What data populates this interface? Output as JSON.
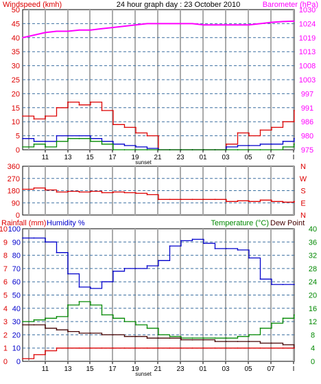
{
  "chart_data": [
    {
      "panel": "wind",
      "type": "line",
      "title": "24 hour graph day : 23 October 2010",
      "left_axis_label": "Windspeed (kmh)",
      "right_axis_label": "Barometer (hPa)",
      "left_ticks": [
        "0",
        "5",
        "10",
        "15",
        "20",
        "25",
        "30",
        "35",
        "40",
        "45",
        "50"
      ],
      "right_ticks": [
        "975",
        "980",
        "986",
        "991",
        "997",
        "1003",
        "1008",
        "1013",
        "1019",
        "1024",
        "1030"
      ],
      "ylim_left": [
        0,
        50
      ],
      "ylim_right": [
        975,
        1030
      ],
      "x_ticks": [
        "11",
        "13",
        "15",
        "17",
        "19",
        "21",
        "23",
        "01",
        "03",
        "05",
        "07",
        "I"
      ],
      "sunset_label": "sunset",
      "grid": true,
      "series": [
        {
          "name": "Barometer (hPa)",
          "color": "#ff00ff",
          "axis": "right",
          "x": [
            0,
            1,
            2,
            3,
            4,
            5,
            6,
            7,
            8,
            9,
            10,
            11,
            12,
            13,
            14,
            15,
            16,
            17,
            18,
            19,
            20,
            21,
            22,
            23,
            24
          ],
          "values": [
            1019,
            1020,
            1021,
            1021.5,
            1021.5,
            1022,
            1022,
            1022.5,
            1023,
            1023.5,
            1024,
            1024.5,
            1024.5,
            1024.5,
            1024.5,
            1024.5,
            1024,
            1024,
            1024,
            1024,
            1024,
            1024.5,
            1025,
            1025.3,
            1025.5
          ]
        },
        {
          "name": "Wind gust",
          "color": "#dd0000",
          "axis": "left",
          "x": [
            0,
            1,
            2,
            3,
            4,
            5,
            6,
            7,
            8,
            9,
            10,
            11,
            12,
            13,
            14,
            15,
            16,
            17,
            18,
            19,
            20,
            21,
            22,
            23,
            24
          ],
          "values": [
            12,
            11,
            12,
            15,
            17,
            16,
            17,
            14,
            9,
            8,
            6,
            5,
            0,
            0,
            0,
            0,
            0,
            0,
            2,
            6,
            5,
            7,
            8,
            10,
            14
          ]
        },
        {
          "name": "Wind average",
          "color": "#0000cc",
          "axis": "left",
          "x": [
            0,
            1,
            2,
            3,
            4,
            5,
            6,
            7,
            8,
            9,
            10,
            11,
            12,
            13,
            14,
            15,
            16,
            17,
            18,
            19,
            20,
            21,
            22,
            23,
            24
          ],
          "values": [
            4,
            3,
            3,
            5,
            5,
            5,
            4,
            3,
            2,
            1.5,
            1,
            0.5,
            0,
            0,
            0,
            0,
            0,
            0,
            1,
            1.5,
            1.5,
            2,
            2,
            3,
            4
          ]
        },
        {
          "name": "Calm",
          "color": "#008800",
          "axis": "left",
          "x": [
            0,
            1,
            2,
            3,
            4,
            5,
            6,
            7,
            8,
            9,
            10,
            11,
            12,
            13,
            14,
            15,
            16,
            17,
            18,
            19,
            20,
            21,
            22,
            23,
            24
          ],
          "values": [
            1,
            2,
            1,
            3,
            4,
            4,
            3,
            2,
            0,
            0,
            0,
            0,
            0,
            0,
            0,
            0,
            0,
            0,
            0,
            0,
            0,
            0,
            0,
            1,
            2
          ]
        }
      ]
    },
    {
      "panel": "direction",
      "type": "line",
      "left_ticks": [
        "0",
        "90",
        "180",
        "270",
        "360"
      ],
      "right_ticks": [
        "N",
        "E",
        "S",
        "W",
        "N"
      ],
      "ylim": [
        0,
        360
      ],
      "grid": true,
      "series": [
        {
          "name": "Wind direction",
          "color": "#dd0000",
          "x": [
            0,
            1,
            2,
            3,
            4,
            5,
            6,
            7,
            8,
            9,
            10,
            11,
            12,
            13,
            14,
            15,
            16,
            17,
            18,
            19,
            20,
            21,
            22,
            23,
            24
          ],
          "values": [
            190,
            200,
            185,
            170,
            175,
            170,
            175,
            165,
            170,
            165,
            160,
            150,
            115,
            115,
            115,
            115,
            115,
            115,
            100,
            105,
            100,
            110,
            100,
            95,
            100
          ]
        }
      ]
    },
    {
      "panel": "temperature",
      "type": "line",
      "left_axis_label": "Rainfall (mm)",
      "left_axis_label2": "Humidity %",
      "right_axis_label": "Temperature (°C)",
      "right_axis_label2": "Dew Point",
      "rain_ticks": [
        "0",
        "1",
        "2",
        "3",
        "4",
        "5",
        "6",
        "7",
        "8",
        "9",
        "10"
      ],
      "humidity_ticks": [
        "0",
        "10",
        "20",
        "30",
        "40",
        "50",
        "60",
        "70",
        "80",
        "90",
        "100"
      ],
      "right_ticks": [
        "0",
        "4",
        "8",
        "12",
        "16",
        "20",
        "24",
        "28",
        "32",
        "36",
        "40"
      ],
      "ylim_humidity": [
        0,
        100
      ],
      "ylim_temperature": [
        0,
        40
      ],
      "ylim_rain": [
        0,
        10
      ],
      "grid": true,
      "series": [
        {
          "name": "Humidity %",
          "color": "#0000cc",
          "axis": "humidity",
          "x": [
            0,
            1,
            2,
            3,
            4,
            5,
            6,
            7,
            8,
            9,
            10,
            11,
            12,
            13,
            14,
            15,
            16,
            17,
            18,
            19,
            20,
            21,
            22,
            23,
            24
          ],
          "values": [
            93,
            93,
            90,
            82,
            66,
            56,
            55,
            60,
            68,
            70,
            70,
            72,
            76,
            87,
            91,
            92,
            89,
            85,
            85,
            84,
            78,
            62,
            58,
            58,
            58
          ]
        },
        {
          "name": "Temperature (°C)",
          "color": "#008800",
          "axis": "temperature",
          "x": [
            0,
            1,
            2,
            3,
            4,
            5,
            6,
            7,
            8,
            9,
            10,
            11,
            12,
            13,
            14,
            15,
            16,
            17,
            18,
            19,
            20,
            21,
            22,
            23,
            24
          ],
          "values": [
            12,
            12.5,
            13,
            13.5,
            17,
            18,
            17,
            14,
            13,
            12,
            11,
            10,
            8,
            7.5,
            7,
            7,
            7,
            7,
            7,
            7.5,
            8,
            10,
            11.5,
            13,
            14
          ]
        },
        {
          "name": "Dew Point",
          "color": "#440000",
          "axis": "temperature",
          "x": [
            0,
            1,
            2,
            3,
            4,
            5,
            6,
            7,
            8,
            9,
            10,
            11,
            12,
            13,
            14,
            15,
            16,
            17,
            18,
            19,
            20,
            21,
            22,
            23,
            24
          ],
          "values": [
            11,
            11,
            10,
            9.5,
            9,
            8.5,
            8.5,
            8,
            8,
            7.5,
            7.5,
            7,
            7,
            7,
            6.5,
            6.5,
            6.5,
            6,
            6,
            6,
            6,
            5.5,
            5.5,
            5,
            4
          ]
        },
        {
          "name": "Rainfall (mm)",
          "color": "#dd0000",
          "axis": "rain",
          "x": [
            0,
            1,
            2,
            3,
            4,
            5,
            6,
            7,
            8,
            9,
            10,
            11,
            12,
            13,
            14,
            15,
            16,
            17,
            18,
            19,
            20,
            21,
            22,
            23,
            24
          ],
          "values": [
            0.2,
            0.5,
            0.8,
            1.0,
            1.0,
            1.0,
            1.0,
            1.0,
            1.0,
            1.0,
            1.0,
            1.0,
            1.0,
            1.0,
            1.0,
            1.0,
            1.0,
            1.0,
            1.0,
            1.0,
            1.0,
            1.0,
            1.0,
            1.0,
            1.0
          ]
        }
      ]
    }
  ]
}
